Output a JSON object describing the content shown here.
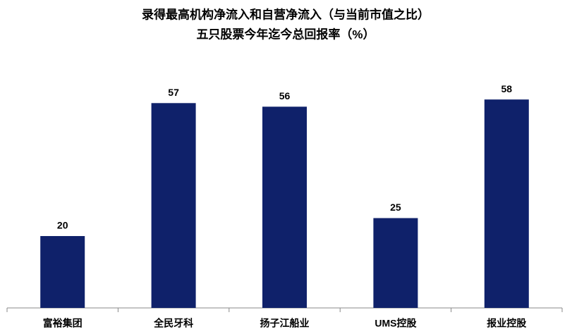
{
  "chart_data": {
    "type": "bar",
    "title": "录得最高机构净流入和自营净流入（与当前市值之比）",
    "subtitle": "五只股票今年迄今总回报率（%）",
    "categories": [
      "富裕集团",
      "全民牙科",
      "扬子江船业",
      "UMS控股",
      "报业控股"
    ],
    "values": [
      20,
      57,
      56,
      25,
      58
    ],
    "color": "#0f216a"
  }
}
